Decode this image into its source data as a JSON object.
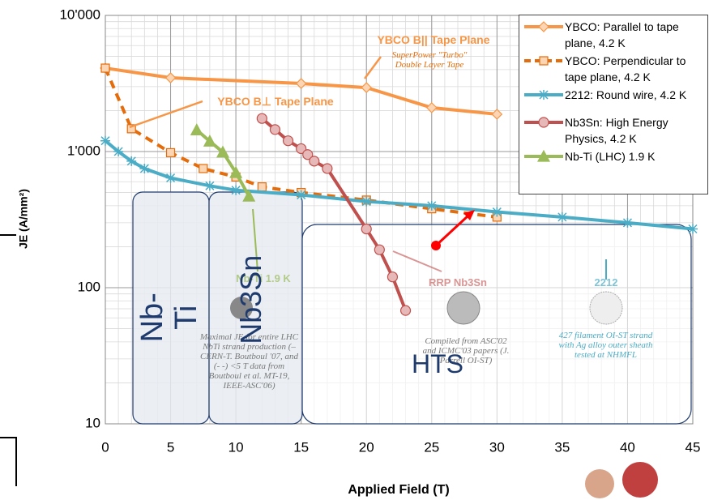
{
  "chart_data": {
    "type": "line",
    "x_label": "Applied Field (T)",
    "y_label": "JE (A/mm²)",
    "log_y": true,
    "grid": true,
    "xlim": [
      0,
      45
    ],
    "xticks": [
      0,
      5,
      10,
      15,
      20,
      25,
      30,
      35,
      40,
      45
    ],
    "ylim": [
      10,
      10000
    ],
    "yticks": [
      {
        "value": 10000,
        "label": "10'000"
      },
      {
        "value": 1000,
        "label": "1'000"
      },
      100,
      10
    ],
    "series": [
      {
        "name": "YBCO: Parallel to tape plane, 4.2 K",
        "color": "#f79646",
        "marker": "diamond",
        "dashed": false,
        "x": [
          0,
          5,
          15,
          20,
          25,
          30
        ],
        "values": [
          4100,
          3480,
          3160,
          2950,
          2100,
          1880
        ]
      },
      {
        "name": "YBCO: Perpendicular to tape plane, 4.2 K",
        "color": "#e46c0a",
        "marker": "square",
        "dashed": true,
        "x": [
          0,
          2,
          5,
          7.5,
          10,
          12,
          15,
          20,
          25,
          30
        ],
        "values": [
          4100,
          1470,
          980,
          750,
          650,
          550,
          500,
          440,
          380,
          330
        ]
      },
      {
        "name": "2212: Round wire, 4.2 K",
        "color": "#4bacc6",
        "marker": "star",
        "dashed": false,
        "x": [
          0,
          1,
          2,
          3,
          5,
          8,
          10,
          15,
          20,
          25,
          30,
          35,
          40,
          45
        ],
        "values": [
          1200,
          1000,
          850,
          750,
          640,
          560,
          520,
          480,
          430,
          400,
          360,
          330,
          300,
          270
        ]
      },
      {
        "name": "Nb3Sn: High Energy Physics, 4.2 K",
        "color": "#c0504d",
        "marker": "circle",
        "dashed": false,
        "x": [
          12,
          13,
          14,
          15,
          15.5,
          16,
          17,
          20,
          21,
          22,
          23
        ],
        "values": [
          1750,
          1450,
          1200,
          1050,
          950,
          850,
          750,
          270,
          190,
          120,
          68
        ]
      },
      {
        "name": "Nb-Ti (LHC) 1.9 K",
        "color": "#9bbb59",
        "marker": "triangle",
        "dashed": false,
        "x": [
          7,
          8,
          9,
          10,
          11
        ],
        "values": [
          1440,
          1190,
          990,
          700,
          470
        ]
      }
    ],
    "annotations": [
      "YBCO B|| Tape Plane",
      "SuperPower \"Turbo\" Double Layer Tape",
      "YBCO B⊥ Tape Plane",
      "Nb-Ti 1.9 K",
      "Maximal JE for entire LHC NbTi strand production (– CERN-T. Boutboul '07, and (- -) <5 T data from Boutboul et al. MT-19, IEEE-ASC'06)",
      "RRP Nb3Sn",
      "Compiled from ASC'02 and ICMC'03 papers (J. Parrell OI-ST)",
      "2212",
      "427 filament OI-ST strand with Ag alloy outer sheath tested at NHMFL",
      "Nb-Ti",
      "Nb3Sn",
      "HTS"
    ]
  }
}
